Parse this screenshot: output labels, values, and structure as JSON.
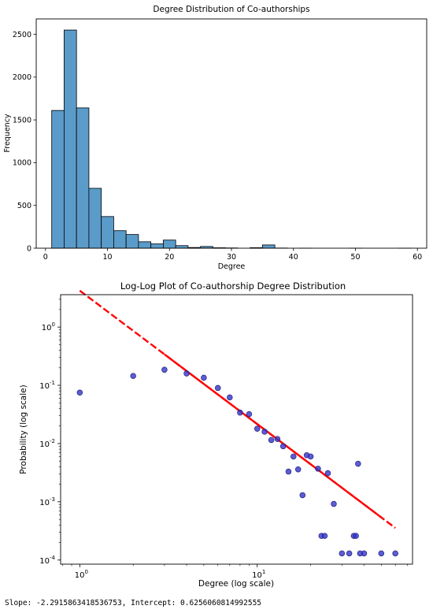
{
  "chart_data": [
    {
      "type": "bar",
      "title": "Degree Distribution of Co-authorships",
      "xlabel": "Degree",
      "ylabel": "Frequency",
      "xlim": [
        -1.5,
        61.5
      ],
      "ylim": [
        0,
        2680
      ],
      "xticks": [
        0,
        10,
        20,
        30,
        40,
        50,
        60
      ],
      "yticks": [
        0,
        500,
        1000,
        1500,
        2000,
        2500
      ],
      "grid": false,
      "bar_color": "#5a9bc9",
      "bins": [
        {
          "x0": 1.0,
          "x1": 3.0,
          "value": 1610
        },
        {
          "x0": 3.0,
          "x1": 5.0,
          "value": 2550
        },
        {
          "x0": 5.0,
          "x1": 7.0,
          "value": 1640
        },
        {
          "x0": 7.0,
          "x1": 9.0,
          "value": 700
        },
        {
          "x0": 9.0,
          "x1": 11.0,
          "value": 370
        },
        {
          "x0": 11.0,
          "x1": 13.0,
          "value": 205
        },
        {
          "x0": 13.0,
          "x1": 15.0,
          "value": 160
        },
        {
          "x0": 15.0,
          "x1": 17.0,
          "value": 75
        },
        {
          "x0": 17.0,
          "x1": 19.0,
          "value": 50
        },
        {
          "x0": 19.0,
          "x1": 21.0,
          "value": 95
        },
        {
          "x0": 21.0,
          "x1": 23.0,
          "value": 30
        },
        {
          "x0": 23.0,
          "x1": 25.0,
          "value": 8
        },
        {
          "x0": 25.0,
          "x1": 27.0,
          "value": 20
        },
        {
          "x0": 27.0,
          "x1": 29.0,
          "value": 5
        },
        {
          "x0": 29.0,
          "x1": 31.0,
          "value": 3
        },
        {
          "x0": 31.0,
          "x1": 33.0,
          "value": 0
        },
        {
          "x0": 33.0,
          "x1": 35.0,
          "value": 6
        },
        {
          "x0": 35.0,
          "x1": 37.0,
          "value": 38
        },
        {
          "x0": 37.0,
          "x1": 39.0,
          "value": 2
        },
        {
          "x0": 39.0,
          "x1": 41.0,
          "value": 0
        },
        {
          "x0": 41.0,
          "x1": 43.0,
          "value": 1
        },
        {
          "x0": 43.0,
          "x1": 45.0,
          "value": 0
        },
        {
          "x0": 45.0,
          "x1": 47.0,
          "value": 0
        },
        {
          "x0": 47.0,
          "x1": 49.0,
          "value": 0
        },
        {
          "x0": 49.0,
          "x1": 51.0,
          "value": 1
        },
        {
          "x0": 51.0,
          "x1": 53.0,
          "value": 0
        },
        {
          "x0": 53.0,
          "x1": 55.0,
          "value": 0
        },
        {
          "x0": 55.0,
          "x1": 57.0,
          "value": 0
        },
        {
          "x0": 57.0,
          "x1": 59.0,
          "value": 1
        }
      ]
    },
    {
      "type": "scatter",
      "title": "Log-Log Plot of Co-authorship Degree Distribution",
      "xlabel": "Degree (log scale)",
      "ylabel": "Probability (log scale)",
      "xscale": "log",
      "yscale": "log",
      "xlim": [
        0.78,
        75
      ],
      "ylim": [
        8.5e-05,
        3.6
      ],
      "xticks": [
        {
          "value": 1,
          "label": "10^0"
        },
        {
          "value": 10,
          "label": "10^1"
        }
      ],
      "yticks": [
        {
          "value": 0.0001,
          "label": "10^-4"
        },
        {
          "value": 0.001,
          "label": "10^-3"
        },
        {
          "value": 0.01,
          "label": "10^-2"
        },
        {
          "value": 0.1,
          "label": "10^-1"
        },
        {
          "value": 1,
          "label": "10^0"
        }
      ],
      "grid": false,
      "point_color": "#3333cc",
      "line_color": "#ff0000",
      "points": [
        {
          "x": 1,
          "y": 0.075
        },
        {
          "x": 2,
          "y": 0.145
        },
        {
          "x": 3,
          "y": 0.185
        },
        {
          "x": 4,
          "y": 0.16
        },
        {
          "x": 5,
          "y": 0.135
        },
        {
          "x": 6,
          "y": 0.09
        },
        {
          "x": 7,
          "y": 0.062
        },
        {
          "x": 8,
          "y": 0.034
        },
        {
          "x": 9,
          "y": 0.032
        },
        {
          "x": 10,
          "y": 0.018
        },
        {
          "x": 11,
          "y": 0.016
        },
        {
          "x": 12,
          "y": 0.0115
        },
        {
          "x": 13,
          "y": 0.012
        },
        {
          "x": 14,
          "y": 0.009
        },
        {
          "x": 15,
          "y": 0.0033
        },
        {
          "x": 16,
          "y": 0.006
        },
        {
          "x": 17,
          "y": 0.0036
        },
        {
          "x": 18,
          "y": 0.0013
        },
        {
          "x": 19,
          "y": 0.0063
        },
        {
          "x": 20,
          "y": 0.006
        },
        {
          "x": 22,
          "y": 0.0037
        },
        {
          "x": 23,
          "y": 0.00026
        },
        {
          "x": 24,
          "y": 0.00026
        },
        {
          "x": 25,
          "y": 0.0031
        },
        {
          "x": 27,
          "y": 0.00092
        },
        {
          "x": 30,
          "y": 0.00013
        },
        {
          "x": 33,
          "y": 0.00013
        },
        {
          "x": 35,
          "y": 0.00026
        },
        {
          "x": 36,
          "y": 0.00026
        },
        {
          "x": 37,
          "y": 0.0045
        },
        {
          "x": 38,
          "y": 0.00013
        },
        {
          "x": 40,
          "y": 0.00013
        },
        {
          "x": 50,
          "y": 0.00013
        },
        {
          "x": 60,
          "y": 0.00013
        }
      ],
      "fit_line": {
        "slope": -2.2915863418536753,
        "intercept": 0.6256060814992555,
        "x_range": [
          1,
          60
        ]
      }
    }
  ],
  "caption": "Slope: -2.2915863418536753, Intercept: 0.6256060814992555"
}
